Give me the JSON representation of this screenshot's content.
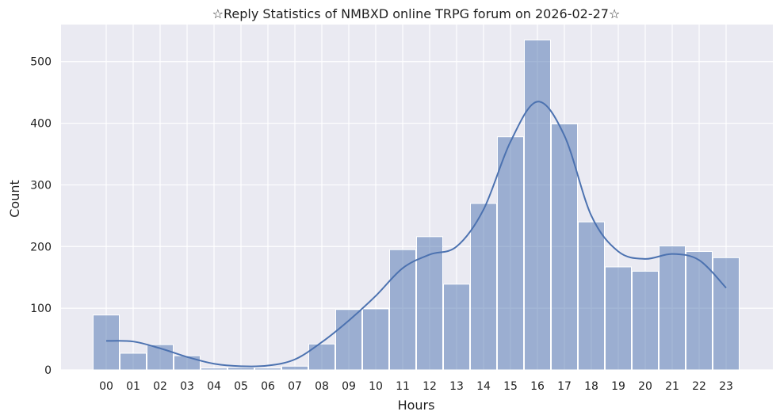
{
  "chart_data": {
    "type": "bar",
    "title": "☆Reply Statistics of NMBXD online TRPG forum on 2026-02-27☆",
    "xlabel": "Hours",
    "ylabel": "Count",
    "categories": [
      "00",
      "01",
      "02",
      "03",
      "04",
      "05",
      "06",
      "07",
      "08",
      "09",
      "10",
      "11",
      "12",
      "13",
      "14",
      "15",
      "16",
      "17",
      "18",
      "19",
      "20",
      "21",
      "22",
      "23"
    ],
    "values": [
      89,
      27,
      41,
      23,
      3,
      4,
      3,
      6,
      42,
      98,
      99,
      195,
      216,
      139,
      270,
      378,
      535,
      399,
      240,
      167,
      160,
      201,
      192,
      182
    ],
    "ylim": [
      0,
      560
    ],
    "yticks": [
      0,
      100,
      200,
      300,
      400,
      500
    ],
    "grid": true,
    "colors": {
      "background": "#eaeaf2",
      "grid": "#ffffff",
      "bar": "#4c72b0",
      "bar_fill_opacity": 0.5,
      "line": "#4c72b0"
    },
    "kde": {
      "x": [
        "00",
        "01",
        "02",
        "03",
        "04",
        "05",
        "06",
        "07",
        "08",
        "09",
        "10",
        "11",
        "12",
        "13",
        "14",
        "15",
        "16",
        "17",
        "18",
        "19",
        "20",
        "21",
        "22",
        "23"
      ],
      "values": [
        47,
        46,
        35,
        21,
        10,
        6,
        7,
        17,
        45,
        80,
        120,
        165,
        187,
        200,
        260,
        370,
        435,
        380,
        250,
        192,
        180,
        188,
        178,
        133
      ]
    }
  }
}
